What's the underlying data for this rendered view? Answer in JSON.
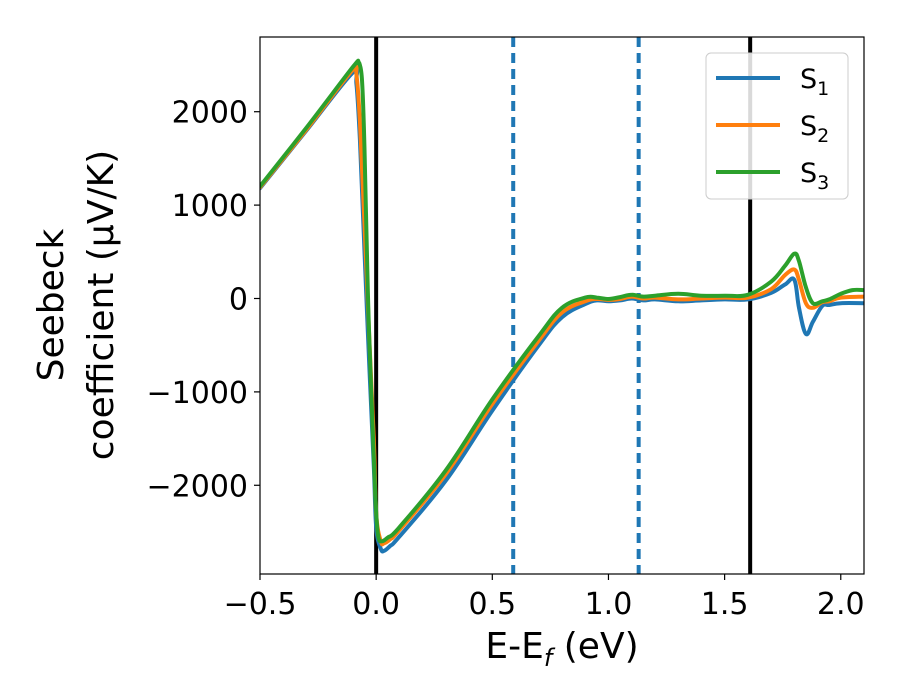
{
  "chart_data": {
    "type": "line",
    "xlabel_main": "E-E",
    "xlabel_sub": "f",
    "xlabel_unit": " (eV)",
    "ylabel_line1": "Seebeck",
    "ylabel_line2": "coefficient  (μV/K)",
    "xlim": [
      -0.5,
      2.1
    ],
    "ylim": [
      -2950,
      2800
    ],
    "xticks": [
      -0.5,
      0.0,
      0.5,
      1.0,
      1.5,
      2.0
    ],
    "xtick_labels": [
      "−0.5",
      "0.0",
      "0.5",
      "1.0",
      "1.5",
      "2.0"
    ],
    "yticks": [
      2000,
      1000,
      0,
      -1000,
      -2000
    ],
    "ytick_labels": [
      "2000",
      "1000",
      "0",
      "−1000",
      "−2000"
    ],
    "grid": false,
    "legend_position": "top-right",
    "vlines": [
      {
        "x": 0.0,
        "color": "#000000",
        "style": "solid"
      },
      {
        "x": 0.59,
        "color": "#1f77b4",
        "style": "dashed"
      },
      {
        "x": 1.13,
        "color": "#1f77b4",
        "style": "dashed"
      },
      {
        "x": 1.61,
        "color": "#000000",
        "style": "solid"
      }
    ],
    "series": [
      {
        "name_base": "S",
        "name_sub": "1",
        "color": "#1f77b4",
        "x": [
          -0.5,
          -0.3,
          -0.1,
          -0.085,
          -0.07,
          -0.05,
          -0.03,
          -0.01,
          0.0,
          0.02,
          0.035,
          0.06,
          0.1,
          0.3,
          0.5,
          0.7,
          0.8,
          0.9,
          0.95,
          1.0,
          1.05,
          1.1,
          1.15,
          1.2,
          1.3,
          1.4,
          1.5,
          1.6,
          1.7,
          1.76,
          1.8,
          1.82,
          1.85,
          1.88,
          1.92,
          1.95,
          2.0,
          2.1
        ],
        "y": [
          1180,
          1800,
          2420,
          2300,
          1700,
          500,
          -700,
          -1800,
          -2450,
          -2680,
          -2700,
          -2650,
          -2550,
          -1950,
          -1200,
          -500,
          -200,
          -60,
          -20,
          -30,
          -20,
          0,
          -20,
          -10,
          -30,
          -20,
          -10,
          -10,
          60,
          150,
          200,
          -100,
          -380,
          -250,
          -80,
          -70,
          -50,
          -50
        ]
      },
      {
        "name_base": "S",
        "name_sub": "2",
        "color": "#ff7f0e",
        "x": [
          -0.5,
          -0.3,
          -0.1,
          -0.085,
          -0.07,
          -0.05,
          -0.03,
          -0.01,
          0.0,
          0.02,
          0.035,
          0.06,
          0.1,
          0.3,
          0.5,
          0.7,
          0.8,
          0.9,
          0.95,
          1.0,
          1.05,
          1.1,
          1.15,
          1.2,
          1.3,
          1.4,
          1.5,
          1.6,
          1.7,
          1.76,
          1.8,
          1.82,
          1.85,
          1.88,
          1.92,
          1.95,
          2.0,
          2.1
        ],
        "y": [
          1190,
          1810,
          2450,
          2400,
          1900,
          800,
          -400,
          -1500,
          -2300,
          -2600,
          -2620,
          -2580,
          -2480,
          -1880,
          -1130,
          -450,
          -150,
          -30,
          -5,
          -15,
          -5,
          20,
          0,
          10,
          -10,
          0,
          10,
          10,
          100,
          250,
          310,
          200,
          -50,
          -100,
          -40,
          -30,
          10,
          20
        ]
      },
      {
        "name_base": "S",
        "name_sub": "3",
        "color": "#2ca02c",
        "x": [
          -0.5,
          -0.3,
          -0.1,
          -0.08,
          -0.07,
          -0.06,
          -0.05,
          -0.04,
          -0.03,
          -0.01,
          0.0,
          0.01,
          0.025,
          0.05,
          0.1,
          0.3,
          0.5,
          0.7,
          0.8,
          0.9,
          0.95,
          1.0,
          1.05,
          1.1,
          1.15,
          1.2,
          1.3,
          1.4,
          1.5,
          1.6,
          1.7,
          1.76,
          1.8,
          1.82,
          1.85,
          1.88,
          1.92,
          1.95,
          2.0,
          2.05,
          2.1
        ],
        "y": [
          1200,
          1830,
          2480,
          2520,
          2500,
          2300,
          1600,
          500,
          -400,
          -1700,
          -2300,
          -2560,
          -2600,
          -2560,
          -2450,
          -1840,
          -1080,
          -400,
          -100,
          10,
          10,
          -5,
          15,
          40,
          20,
          30,
          50,
          30,
          30,
          40,
          180,
          350,
          480,
          400,
          120,
          -50,
          -30,
          -10,
          50,
          90,
          90
        ]
      }
    ]
  }
}
